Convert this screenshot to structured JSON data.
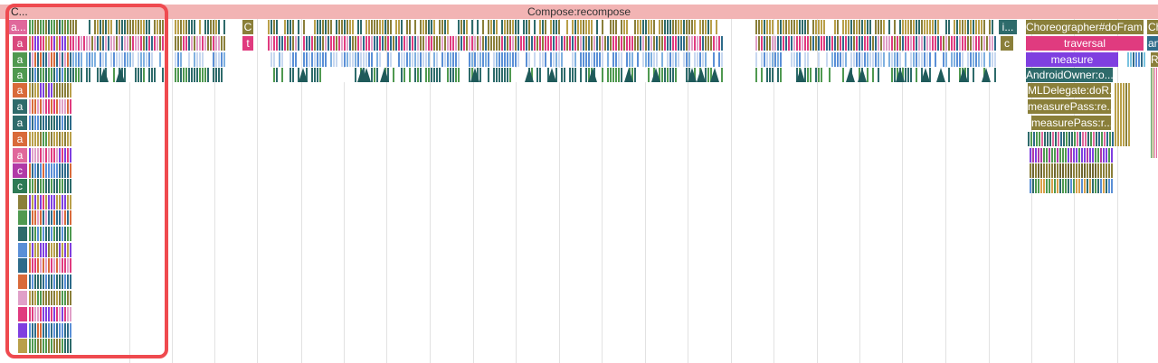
{
  "root_slice": {
    "label": "Compose:recompose",
    "first_label": "C..."
  },
  "left_column_labels": [
    "a...",
    "a",
    "a",
    "a",
    "a",
    "a",
    "a",
    "a",
    "a",
    "c",
    "c"
  ],
  "right_stack": {
    "choreographer": "Choreographer#doFram...",
    "traversal": "traversal",
    "measure": "measure",
    "owner": "AndroidOwner:o...",
    "delegate": "MLDelegate:doR...",
    "measure_pass_1": "measurePass:re...",
    "measure_pass_2": "measurePass:r..."
  },
  "mid_labels": {
    "c_top": "C",
    "t": "t",
    "c_small": "c",
    "i": "i..."
  },
  "edge_labels": {
    "ch": "Ch",
    "an": "an",
    "r": "R"
  },
  "colors": {
    "root": "#f2b4b4",
    "olive": "#8a7f3a",
    "magenta": "#e03b7f",
    "violet": "#7f3fe0",
    "teal": "#2e6b6b",
    "highlight": "#ef4a4f"
  }
}
